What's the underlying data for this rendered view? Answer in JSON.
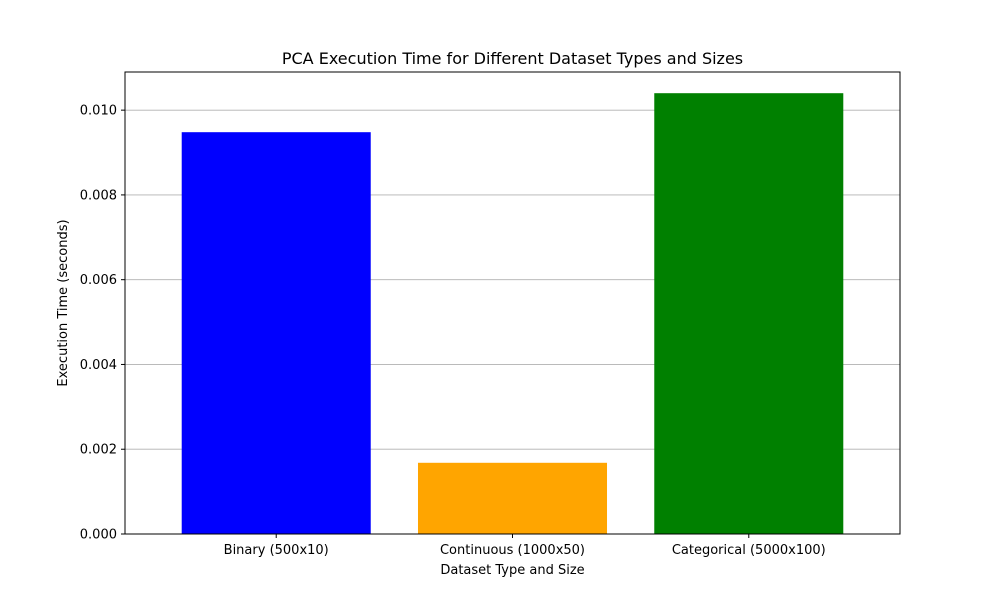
{
  "chart_data": {
    "type": "bar",
    "title": "PCA Execution Time for Different Dataset Types and Sizes",
    "xlabel": "Dataset Type and Size",
    "ylabel": "Execution Time (seconds)",
    "categories": [
      "Binary (500x10)",
      "Continuous (1000x50)",
      "Categorical (5000x100)"
    ],
    "values": [
      0.00948,
      0.00168,
      0.0104
    ],
    "colors": [
      "#0000ff",
      "#ffa500",
      "#008000"
    ],
    "ylim": [
      0,
      0.0109
    ],
    "yticks": [
      0.0,
      0.002,
      0.004,
      0.006,
      0.008,
      0.01
    ],
    "ytick_labels": [
      "0.000",
      "0.002",
      "0.004",
      "0.006",
      "0.008",
      "0.010"
    ],
    "grid": "y-axis"
  }
}
